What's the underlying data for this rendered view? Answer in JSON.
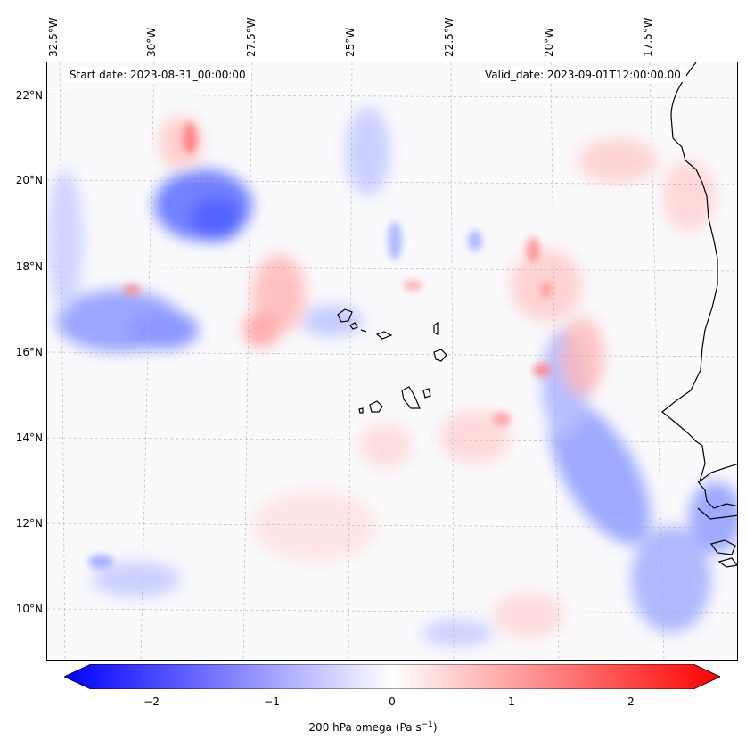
{
  "map": {
    "start_date": "Start date: 2023-08-31_00:00:00",
    "valid_date": "Valid_date: 2023-09-01T12:00:00.00",
    "lon_labels": [
      "32.5°W",
      "30°W",
      "27.5°W",
      "25°W",
      "22.5°W",
      "20°W",
      "17.5°W"
    ],
    "lat_labels": [
      "22°N",
      "20°N",
      "18°N",
      "16°N",
      "14°N",
      "12°N",
      "10°N"
    ]
  },
  "colorbar": {
    "label": "200 hPa omega (Pa s",
    "label_sup": "−1",
    "label_close": ")",
    "ticks": [
      "−2",
      "−1",
      "0",
      "1",
      "2"
    ],
    "range": [
      -2.6,
      2.6
    ],
    "colors": {
      "low": "#0000ff",
      "mid": "#ffffff",
      "high": "#ff0000"
    }
  }
}
